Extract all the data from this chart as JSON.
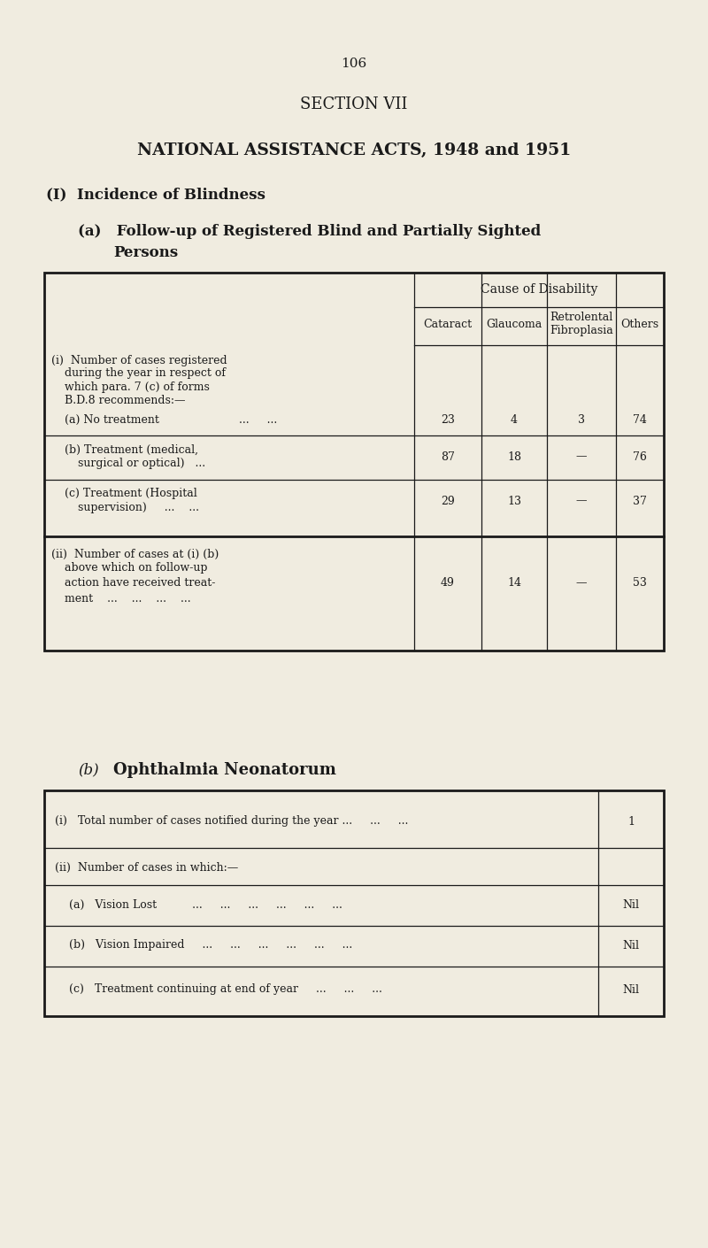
{
  "bg_color": "#f0ece0",
  "text_color": "#1a1a1a",
  "page_number": "106",
  "section_title": "SECTION VII",
  "main_title": "NATIONAL ASSISTANCE ACTS, 1948 and 1951",
  "heading1": "(I)  Incidence of Blindness",
  "table1_col_header": "Cause of Disability",
  "table1_cols": [
    "Cataract",
    "Glaucoma",
    "Retrolental\nFibroplasia",
    "Others"
  ],
  "table1_row_i_line1": "(i)  Number of cases registered",
  "table1_row_i_line2": "during the year in respect of",
  "table1_row_i_line3": "which para. 7 (c) of forms",
  "table1_row_i_line4": "B.D.8 recommends:—",
  "row_a_label1": "(a) No treatment",
  "row_a_label2": "...     ...",
  "row_a_vals": [
    "23",
    "4",
    "3",
    "74"
  ],
  "row_b_label1": "(b) Treatment (medical,",
  "row_b_label2": "surgical or optical)   ...",
  "row_b_vals": [
    "87",
    "18",
    "—",
    "76"
  ],
  "row_c_label1": "(c) Treatment (Hospital",
  "row_c_label2": "supervision)     ...    ...",
  "row_c_vals": [
    "29",
    "13",
    "—",
    "37"
  ],
  "row_ii_line1": "(ii)  Number of cases at (i) (b)",
  "row_ii_line2": "above which on follow-up",
  "row_ii_line3": "action have received treat-",
  "row_ii_line4": "ment    ...    ...    ...    ...",
  "row_ii_vals": [
    "49",
    "14",
    "—",
    "53"
  ],
  "heading3": "Ophthalmia Neonatorum",
  "t2_row1_label": "(i)   Total number of cases notified during the year ...     ...     ...",
  "t2_row1_val": "1",
  "t2_row2_label": "(ii)  Number of cases in which:—",
  "t2_row3_label": "(a)   Vision Lost          ...     ...     ...     ...     ...     ...",
  "t2_row3_val": "Nil",
  "t2_row4_label": "(b)   Vision Impaired     ...     ...     ...     ...     ...     ...",
  "t2_row4_val": "Nil",
  "t2_row5_label": "(c)   Treatment continuing at end of year     ...     ...     ...",
  "t2_row5_val": "Nil"
}
